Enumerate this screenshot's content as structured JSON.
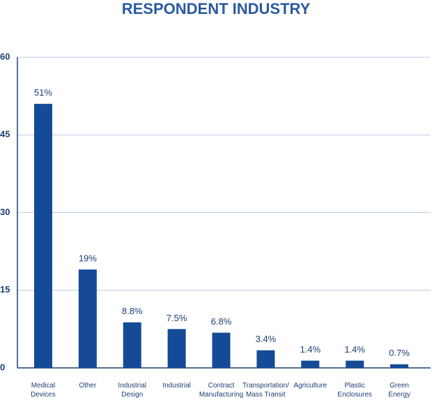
{
  "chart_data": {
    "type": "bar",
    "title": "RESPONDENT INDUSTRY",
    "categories": [
      "Medical\nDevices",
      "Other",
      "Industrial\nDesign",
      "Industrial",
      "Contract\nManufacturing",
      "Transportation/\nMass Transit",
      "Agriculture",
      "Plastic\nEnclosures",
      "Green\nEnergy"
    ],
    "values": [
      51,
      19,
      8.8,
      7.5,
      6.8,
      3.4,
      1.4,
      1.4,
      0.7
    ],
    "value_labels": [
      "51%",
      "19%",
      "8.8%",
      "7.5%",
      "6.8%",
      "3.4%",
      "1.4%",
      "1.4%",
      "0.7%"
    ],
    "color": "#154b96",
    "ylim": [
      0,
      60
    ],
    "yticks": [
      0,
      15,
      30,
      45,
      60
    ],
    "grid": true
  }
}
